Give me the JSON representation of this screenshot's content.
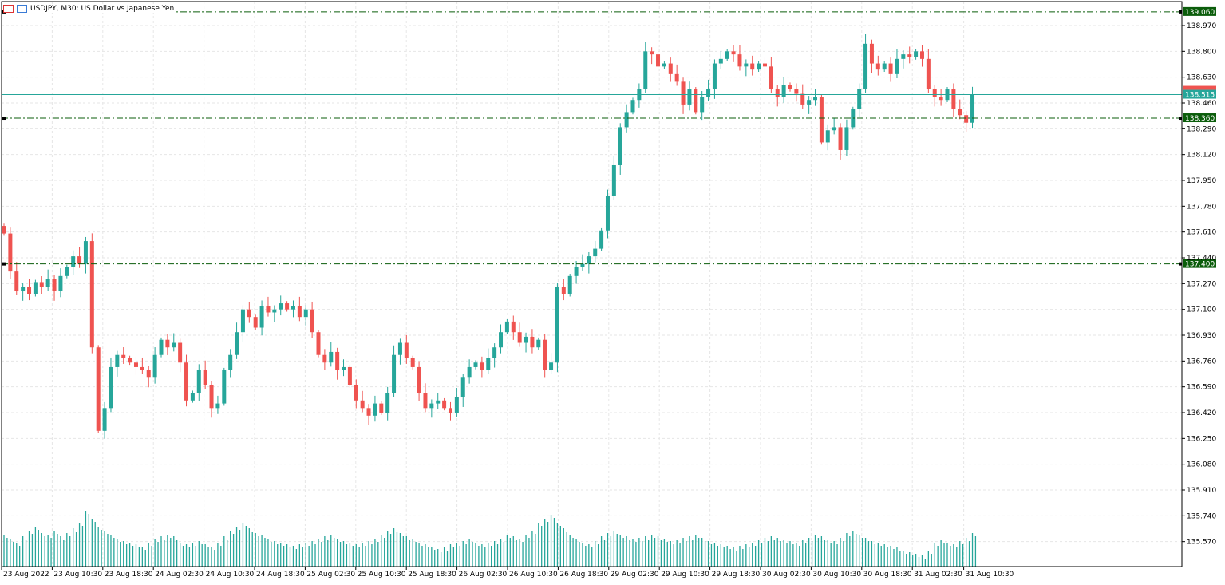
{
  "header": {
    "title": "USDJPY, M30:  US Dollar vs Japanese Yen",
    "icons": [
      "chart-list-icon",
      "template-icon"
    ]
  },
  "colors": {
    "bull": "#26a69a",
    "bear": "#ef5350",
    "level": "#0b5d0b",
    "bid": "#26a69a",
    "ask": "#ef5350",
    "grid": "#e6e6e6"
  },
  "chart_data": {
    "type": "candlestick",
    "symbol": "USDJPY",
    "timeframe": "M30",
    "ylim": [
      135.45,
      139.13
    ],
    "y_ticks": [
      "138.970",
      "138.800",
      "138.630",
      "138.460",
      "138.290",
      "138.120",
      "137.950",
      "137.780",
      "137.610",
      "137.440",
      "137.270",
      "137.100",
      "136.930",
      "136.760",
      "136.590",
      "136.420",
      "136.250",
      "136.080",
      "135.910",
      "135.740",
      "135.570"
    ],
    "x_ticks": [
      "23 Aug 2022",
      "23 Aug 10:30",
      "23 Aug 18:30",
      "24 Aug 02:30",
      "24 Aug 10:30",
      "24 Aug 18:30",
      "25 Aug 02:30",
      "25 Aug 10:30",
      "25 Aug 18:30",
      "26 Aug 02:30",
      "26 Aug 10:30",
      "26 Aug 18:30",
      "29 Aug 02:30",
      "29 Aug 10:30",
      "29 Aug 18:30",
      "30 Aug 02:30",
      "30 Aug 10:30",
      "30 Aug 18:30",
      "31 Aug 02:30",
      "31 Aug 10:30"
    ],
    "grid": true,
    "closes": [
      137.6,
      137.35,
      137.22,
      137.25,
      137.2,
      137.28,
      137.25,
      137.3,
      137.22,
      137.32,
      137.38,
      137.45,
      137.4,
      137.55,
      136.85,
      136.3,
      136.45,
      136.72,
      136.8,
      136.78,
      136.75,
      136.72,
      136.7,
      136.65,
      136.8,
      136.9,
      136.85,
      136.88,
      136.75,
      136.5,
      136.55,
      136.7,
      136.6,
      136.45,
      136.48,
      136.7,
      136.8,
      136.95,
      137.1,
      137.05,
      136.98,
      137.12,
      137.08,
      137.1,
      137.14,
      137.1,
      137.12,
      137.05,
      137.1,
      136.95,
      136.8,
      136.75,
      136.82,
      136.7,
      136.72,
      136.6,
      136.5,
      136.45,
      136.4,
      136.48,
      136.42,
      136.55,
      136.8,
      136.88,
      136.78,
      136.72,
      136.55,
      136.45,
      136.48,
      136.5,
      136.45,
      136.42,
      136.52,
      136.65,
      136.72,
      136.75,
      136.7,
      136.78,
      136.85,
      136.95,
      137.02,
      136.95,
      136.88,
      136.92,
      136.85,
      136.9,
      136.7,
      136.75,
      137.25,
      137.2,
      137.32,
      137.38,
      137.4,
      137.45,
      137.5,
      137.62,
      137.85,
      138.05,
      138.3,
      138.4,
      138.48,
      138.55,
      138.8,
      138.78,
      138.7,
      138.72,
      138.65,
      138.6,
      138.45,
      138.55,
      138.4,
      138.5,
      138.55,
      138.72,
      138.75,
      138.8,
      138.78,
      138.7,
      138.72,
      138.68,
      138.72,
      138.7,
      138.55,
      138.5,
      138.58,
      138.55,
      138.52,
      138.45,
      138.48,
      138.5,
      138.2,
      138.28,
      138.3,
      138.15,
      138.3,
      138.42,
      138.55,
      138.85,
      138.72,
      138.68,
      138.72,
      138.65,
      138.75,
      138.78,
      138.76,
      138.8,
      138.75,
      138.55,
      138.5,
      138.48,
      138.55,
      138.42,
      138.38,
      138.33,
      138.515
    ],
    "volumes": [
      40,
      35,
      30,
      38,
      45,
      50,
      42,
      40,
      45,
      38,
      42,
      48,
      55,
      70,
      60,
      50,
      45,
      40,
      35,
      32,
      30,
      28,
      25,
      30,
      35,
      38,
      40,
      38,
      30,
      28,
      30,
      32,
      28,
      25,
      30,
      38,
      45,
      50,
      55,
      48,
      42,
      40,
      35,
      32,
      30,
      28,
      26,
      28,
      30,
      32,
      35,
      38,
      40,
      35,
      32,
      30,
      28,
      30,
      32,
      35,
      40,
      45,
      48,
      42,
      38,
      35,
      30,
      28,
      25,
      22,
      24,
      28,
      30,
      32,
      35,
      30,
      28,
      30,
      32,
      35,
      40,
      38,
      35,
      40,
      45,
      55,
      60,
      65,
      55,
      48,
      40,
      35,
      30,
      28,
      32,
      38,
      42,
      45,
      40,
      38,
      35,
      36,
      38,
      40,
      38,
      35,
      32,
      34,
      36,
      38,
      40,
      36,
      32,
      30,
      28,
      26,
      24,
      26,
      28,
      30,
      34,
      36,
      38,
      36,
      34,
      32,
      30,
      34,
      36,
      40,
      38,
      34,
      32,
      36,
      42,
      45,
      40,
      36,
      32,
      30,
      28,
      26,
      24,
      20,
      18,
      16,
      14,
      20,
      30,
      34,
      30,
      28,
      32,
      36,
      42
    ],
    "levels": [
      "139.060",
      "138.360",
      "137.400"
    ],
    "bid": "138.515"
  }
}
